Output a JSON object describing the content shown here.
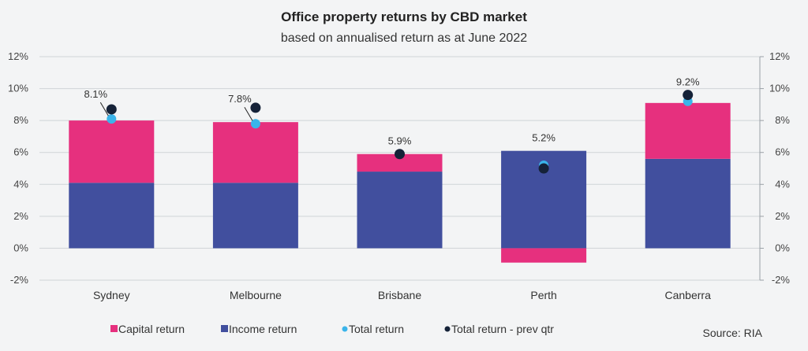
{
  "chart_data": {
    "type": "bar",
    "title": "Office property returns by CBD market",
    "subtitle": "based on annualised return as at June 2022",
    "categories": [
      "Sydney",
      "Melbourne",
      "Brisbane",
      "Perth",
      "Canberra"
    ],
    "series": [
      {
        "name": "Income return",
        "type": "bar",
        "stacked": true,
        "color": "#414f9e",
        "values": [
          4.1,
          4.1,
          4.8,
          6.1,
          5.6
        ]
      },
      {
        "name": "Capital return",
        "type": "bar",
        "stacked": true,
        "color": "#e6307e",
        "values": [
          3.9,
          3.8,
          1.1,
          -0.9,
          3.5
        ]
      },
      {
        "name": "Total return",
        "type": "scatter",
        "color": "#3ab4ea",
        "values": [
          8.1,
          7.8,
          5.9,
          5.2,
          9.2
        ]
      },
      {
        "name": "Total return - prev qtr",
        "type": "scatter",
        "color": "#152238",
        "values": [
          8.7,
          8.8,
          5.9,
          5.0,
          9.6
        ]
      }
    ],
    "data_labels": [
      "8.1%",
      "7.8%",
      "5.9%",
      "5.2%",
      "9.2%"
    ],
    "ylim": [
      -2,
      12
    ],
    "yticks": [
      "-2%",
      "0%",
      "2%",
      "4%",
      "6%",
      "8%",
      "10%",
      "12%"
    ],
    "ytick_values": [
      -2,
      0,
      2,
      4,
      6,
      8,
      10,
      12
    ],
    "grid": true,
    "secondary_y_axis": true,
    "legend_position": "bottom",
    "legend": [
      "Capital return",
      "Income return",
      "Total return",
      "Total return - prev qtr"
    ],
    "source": "Source: RIA"
  }
}
